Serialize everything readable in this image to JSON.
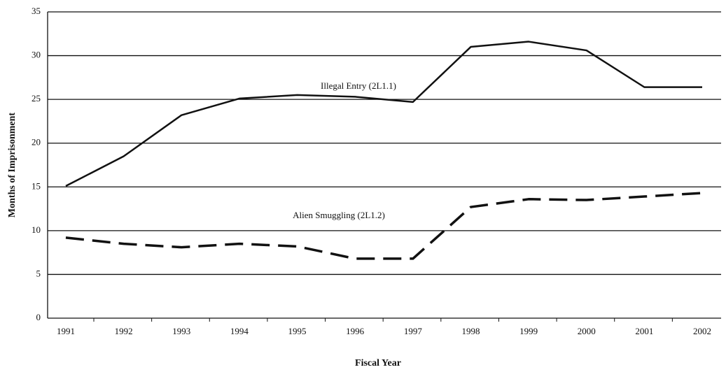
{
  "chart_data": {
    "type": "line",
    "x_label": "Fiscal Year",
    "y_label": "Months of Imprisonment",
    "categories": [
      "1991",
      "1992",
      "1993",
      "1994",
      "1995",
      "1996",
      "1997",
      "1998",
      "1999",
      "2000",
      "2001",
      "2002"
    ],
    "series": [
      {
        "name": "Illegal Entry (2L1.1)",
        "color": "#111111",
        "dashed": false,
        "values": [
          15.1,
          18.5,
          23.2,
          25.1,
          25.5,
          25.3,
          24.7,
          31,
          31.6,
          30.6,
          26.4,
          26.4
        ]
      },
      {
        "name": "Alien Smuggling (2L1.2)",
        "color": "#111111",
        "dashed": true,
        "values": [
          9.2,
          8.5,
          8.1,
          8.5,
          8.2,
          6.8,
          6.8,
          12.7,
          13.6,
          13.5,
          13.9,
          14.3
        ]
      }
    ],
    "ylim": [
      0,
      35
    ],
    "yticks": [
      0,
      5,
      10,
      15,
      20,
      25,
      30,
      35
    ],
    "grid": true
  }
}
